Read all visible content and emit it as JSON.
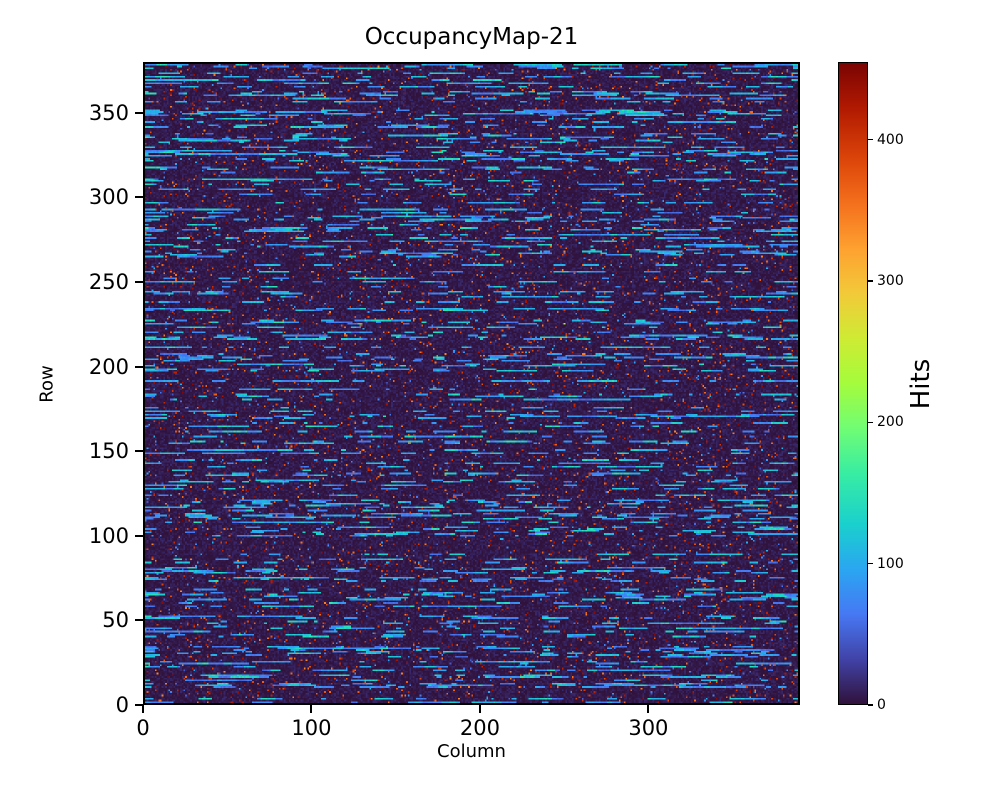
{
  "chart_data": {
    "type": "heatmap",
    "title": "OccupancyMap-21",
    "xlabel": "Column",
    "ylabel": "Row",
    "colorbar_label": "Hits",
    "n_cols": 390,
    "n_rows": 380,
    "xlim": [
      0,
      390
    ],
    "ylim": [
      0,
      380
    ],
    "x_ticks": [
      0,
      100,
      200,
      300
    ],
    "y_ticks": [
      0,
      50,
      100,
      150,
      200,
      250,
      300,
      350
    ],
    "colorbar_ticks": [
      0,
      100,
      200,
      300,
      400
    ],
    "vmin": 0,
    "vmax": 455,
    "grid": false,
    "colormap": "turbo",
    "colormap_stops": [
      [
        0.0,
        "#30123b"
      ],
      [
        0.07,
        "#4143a7"
      ],
      [
        0.14,
        "#4678f4"
      ],
      [
        0.21,
        "#2aa6f1"
      ],
      [
        0.28,
        "#1ad0cd"
      ],
      [
        0.36,
        "#38eda2"
      ],
      [
        0.43,
        "#70fd74"
      ],
      [
        0.5,
        "#a4fc3c"
      ],
      [
        0.57,
        "#ceeb34"
      ],
      [
        0.64,
        "#f2ca39"
      ],
      [
        0.71,
        "#fea130"
      ],
      [
        0.78,
        "#f4701d"
      ],
      [
        0.85,
        "#dc4509"
      ],
      [
        0.93,
        "#b11901"
      ],
      [
        1.0,
        "#7a0403"
      ]
    ],
    "background_color": "#ffffff",
    "text_color": "#000000",
    "pattern": {
      "description": "Pixel-detector occupancy map: mostly near-zero (dark purple) background, many rows containing short horizontal dashed runs of ~55-140 hits (blue/cyan), sparse isolated blue dots, rare dark-red speckles near the colour-scale maximum, and one bright pixel near (250, 225).",
      "seed": 21,
      "background_max": 16,
      "speckle_probability": 0.035,
      "speckle_value_range": [
        340,
        455
      ],
      "dot_probability": 0.012,
      "dot_value_range": [
        35,
        110
      ],
      "dash_row_probability": 0.48,
      "dash_start_probability": 0.55,
      "dash_length_range": [
        2,
        9
      ],
      "dash_value_range": [
        55,
        140
      ],
      "gap_length_range": [
        4,
        30
      ],
      "hot_pixel": {
        "col": 250,
        "row": 225,
        "value": 230
      }
    }
  }
}
